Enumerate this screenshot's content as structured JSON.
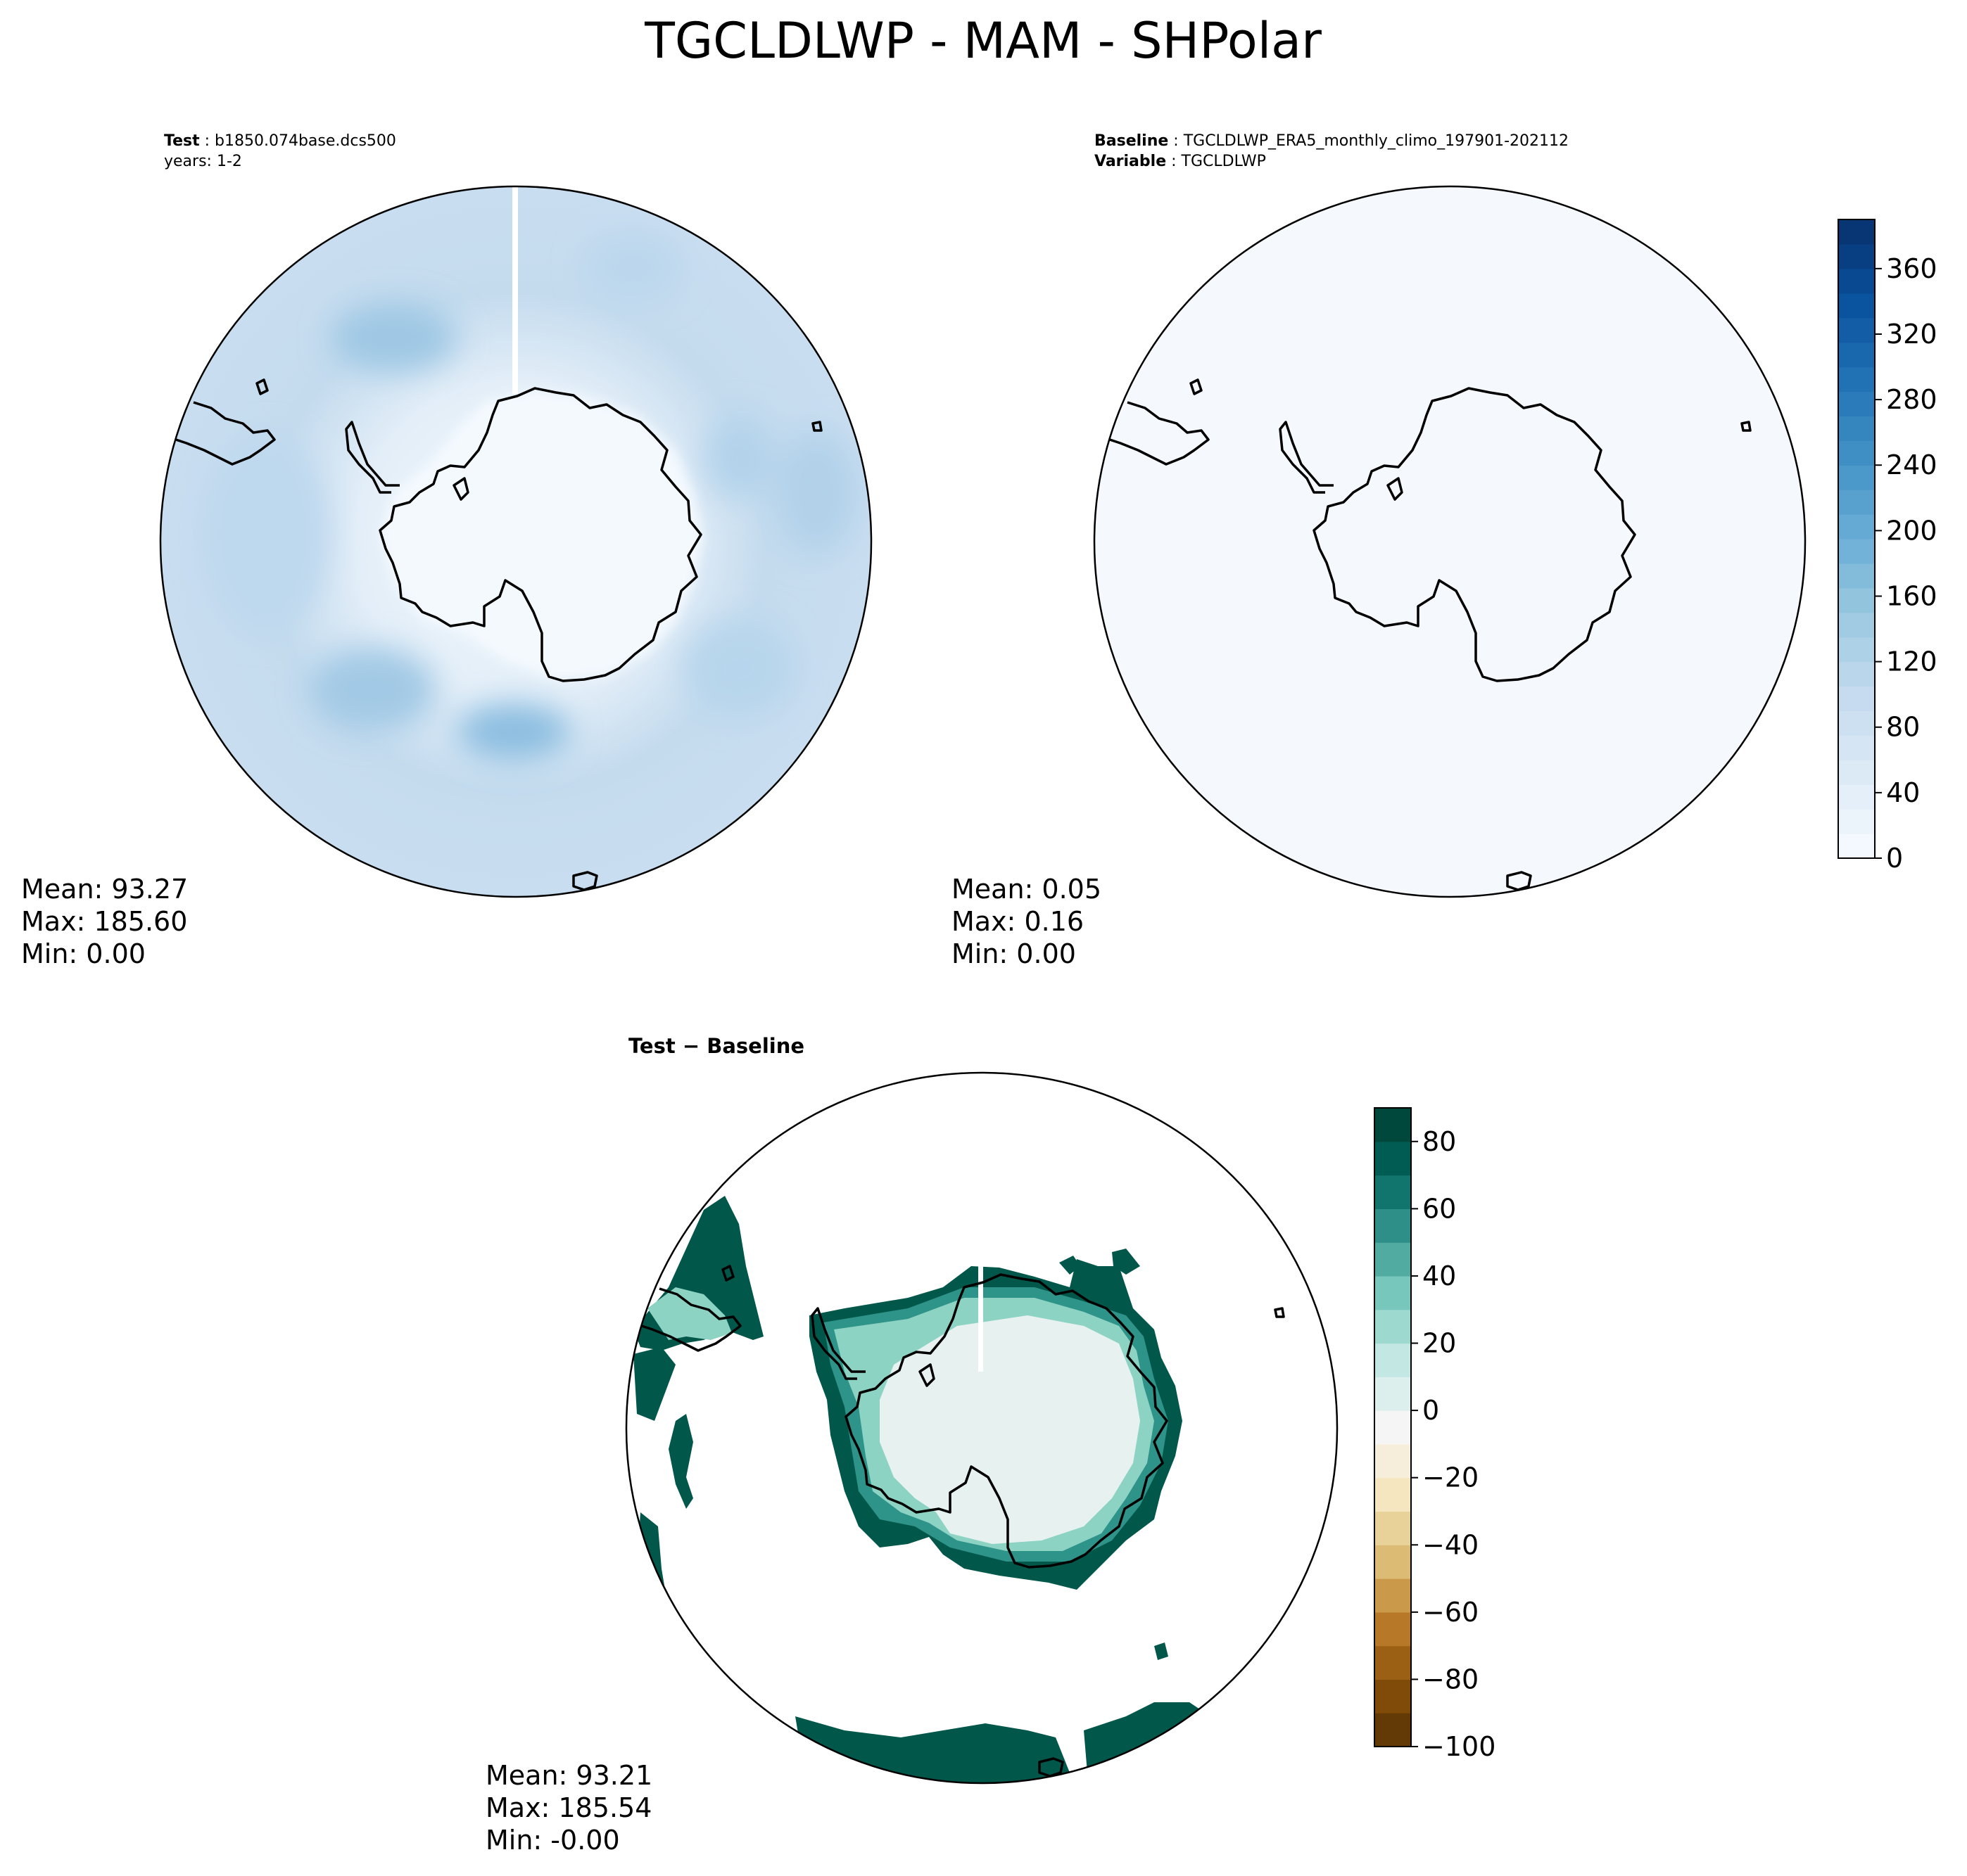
{
  "figure": {
    "title": "TGCLDLWP - MAM - SHPolar"
  },
  "panels": {
    "test": {
      "label_bold": "Test",
      "label_text": "b1850.074base.dcs500",
      "line2": "years: 1-2",
      "stats": {
        "mean": "Mean: 93.27",
        "max": "Max: 185.60",
        "min": "Min:  0.00"
      }
    },
    "baseline": {
      "label_bold": "Baseline",
      "label_text": "TGCLDLWP_ERA5_monthly_climo_197901-202112",
      "line2_bold": "Variable",
      "line2_text": "TGCLDLWP",
      "stats": {
        "mean": "Mean:  0.05",
        "max": "Max:  0.16",
        "min": "Min:  0.00"
      }
    },
    "diff": {
      "title": "Test − Baseline",
      "stats": {
        "mean": "Mean: 93.21",
        "max": "Max: 185.54",
        "min": "Min: -0.00"
      }
    }
  },
  "colorbars": {
    "blues": {
      "ticks": [
        "0",
        "40",
        "80",
        "120",
        "160",
        "200",
        "240",
        "280",
        "320",
        "360"
      ],
      "levels": 26,
      "range": [
        0,
        390
      ],
      "colormap": "Blues"
    },
    "diverging": {
      "ticks": [
        "−100",
        "−80",
        "−60",
        "−40",
        "−20",
        "0",
        "20",
        "40",
        "60",
        "80"
      ],
      "levels": 19,
      "range": [
        -100,
        90
      ],
      "colormap": "BrBG"
    }
  },
  "chart_data": [
    {
      "type": "heatmap",
      "title": "Test: b1850.074base.dcs500, years: 1-2",
      "projection": "South Polar Stereographic",
      "colormap": "Blues",
      "mean": 93.27,
      "max": 185.6,
      "min": 0.0
    },
    {
      "type": "heatmap",
      "title": "Baseline: TGCLDLWP_ERA5_monthly_climo_197901-202112",
      "projection": "South Polar Stereographic",
      "colormap": "Blues",
      "mean": 0.05,
      "max": 0.16,
      "min": 0.0
    },
    {
      "type": "heatmap",
      "title": "Test − Baseline",
      "projection": "South Polar Stereographic",
      "colormap": "BrBG",
      "mean": 93.21,
      "max": 185.54,
      "min": -0.0
    }
  ],
  "colors": {
    "blues_low": "#f7fbff",
    "blues_high": "#08306b",
    "teal_dark": "#01473c",
    "brown_dark": "#5a3005"
  }
}
